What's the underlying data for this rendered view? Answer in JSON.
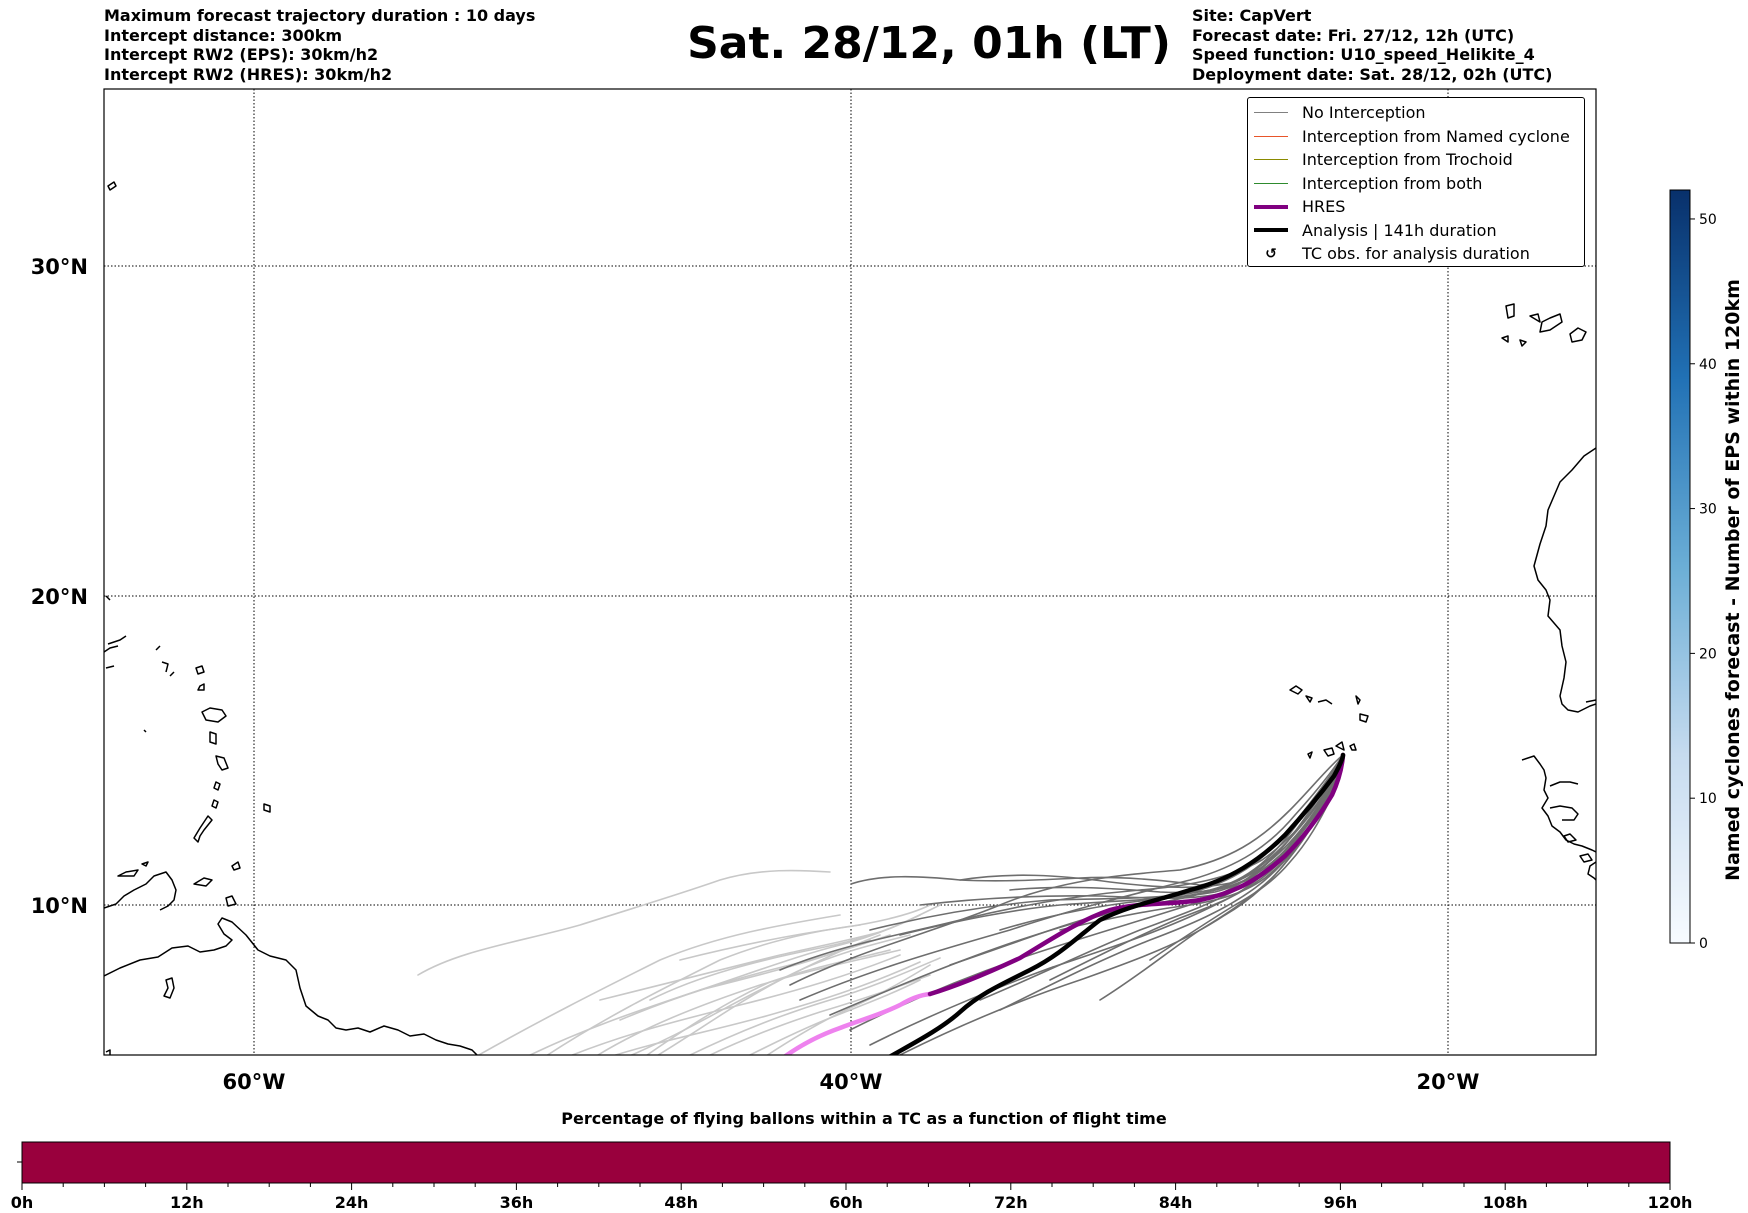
{
  "header": {
    "left_lines": [
      "Maximum forecast trajectory duration : 10 days",
      "Intercept distance: 300km",
      "Intercept RW2 (EPS):  30km/h2",
      "Intercept RW2 (HRES): 30km/h2"
    ],
    "title": "Sat. 28/12, 01h (LT)",
    "right_lines": [
      "Site: CapVert",
      "Forecast date: Fri. 27/12, 12h (UTC)",
      "Speed function: U10_speed_Helikite_4",
      "Deployment date: Sat. 28/12, 02h (UTC)"
    ]
  },
  "map": {
    "lat_labels": [
      "30°N",
      "20°N",
      "10°N"
    ],
    "lon_labels": [
      "60°W",
      "40°W",
      "20°W"
    ],
    "extent": {
      "lon_min": -65,
      "lon_max": -15,
      "lat_min": 5.1,
      "lat_max": 35.7
    }
  },
  "legend": {
    "items": [
      {
        "label": "No Interception",
        "color": "#808080",
        "style": "thin"
      },
      {
        "label": "Interception from Named cyclone",
        "color": "#e8552a",
        "style": "thin"
      },
      {
        "label": "Interception from Trochoid",
        "color": "#8a8a00",
        "style": "thin"
      },
      {
        "label": "Interception from both",
        "color": "#2e8b2e",
        "style": "thin"
      },
      {
        "label": "HRES",
        "color": "#800080",
        "style": "thick"
      },
      {
        "label": "Analysis | 141h duration",
        "color": "#000000",
        "style": "thick"
      },
      {
        "label": "TC obs. for analysis duration",
        "color": "#000000",
        "style": "symbol",
        "symbol": "↺"
      }
    ]
  },
  "colorbar": {
    "label": "Named cyclones forecast - Number of EPS within 120km",
    "ticks": [
      "0",
      "10",
      "20",
      "30",
      "40",
      "50"
    ],
    "min": 0,
    "max": 52,
    "cmap": "Blues"
  },
  "timebar": {
    "title": "Percentage of flying ballons within a TC as a function of flight time",
    "ticks": [
      "0h",
      "12h",
      "24h",
      "36h",
      "48h",
      "60h",
      "72h",
      "84h",
      "96h",
      "108h",
      "120h"
    ],
    "fill_color": "#99003d",
    "fill_percent": 100
  }
}
